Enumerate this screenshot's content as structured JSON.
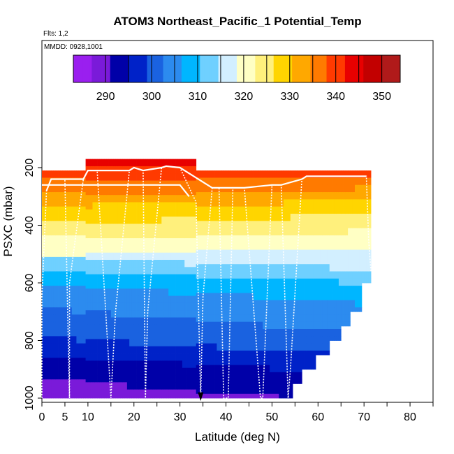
{
  "chart_data": {
    "type": "heatmap",
    "title": "ATOM3 Northeast_Pacific_1 Potential_Temp",
    "subtitle_flights": "Flts: 1,2",
    "subtitle_dates": "MMDD: 0928,1001",
    "xlabel": "Latitude (deg N)",
    "ylabel": "PSXC (mbar)",
    "xlim": [
      0,
      85
    ],
    "ylim": [
      1000,
      0
    ],
    "x_ticks": [
      0,
      5,
      10,
      20,
      30,
      40,
      50,
      60,
      70,
      80
    ],
    "y_ticks": [
      200,
      400,
      600,
      800,
      1000
    ],
    "colorbar": {
      "range": [
        283,
        354
      ],
      "ticks": [
        290,
        300,
        310,
        320,
        330,
        340,
        350
      ],
      "colors": [
        "#9a1fef",
        "#7a1ad9",
        "#0000a8",
        "#0022c8",
        "#1a62e0",
        "#2c8bef",
        "#00b6ff",
        "#6fd0ff",
        "#d2efff",
        "#ffffc4",
        "#fff07c",
        "#ffd500",
        "#ffa800",
        "#ff7a00",
        "#ff3a00",
        "#e80000",
        "#c20000",
        "#b01a1a"
      ]
    },
    "pressure_levels": [
      180,
      200,
      260,
      300,
      340,
      400,
      450,
      500,
      550,
      600,
      650,
      700,
      750,
      800,
      850,
      900,
      950,
      1000
    ],
    "theta_profile": [
      345,
      342,
      336,
      333,
      329,
      325,
      321,
      318,
      313,
      309,
      306,
      304,
      302,
      300,
      297,
      294,
      292,
      290
    ],
    "lat_columns_extent": [
      {
        "x0": 0,
        "x1": 9.5,
        "p_top": 210
      },
      {
        "x0": 9.5,
        "x1": 33.5,
        "p_top": 170
      },
      {
        "x0": 33.5,
        "x1": 70.5,
        "p_top": 210
      },
      {
        "x0": 70.5,
        "x1": 71.5,
        "p_top": 210
      }
    ],
    "lat_columns_bottom": [
      {
        "x0": 0,
        "x1": 33.5,
        "p_bot": 1000
      },
      {
        "x0": 33.5,
        "x1": 54.5,
        "p_bot": 1000
      },
      {
        "x0": 54.5,
        "x1": 56.5,
        "p_bot": 950
      },
      {
        "x0": 56.5,
        "x1": 59.5,
        "p_bot": 900
      },
      {
        "x0": 59.5,
        "x1": 62.5,
        "p_bot": 850
      },
      {
        "x0": 62.5,
        "x1": 65,
        "p_bot": 800
      },
      {
        "x0": 65,
        "x1": 67,
        "p_bot": 750
      },
      {
        "x0": 67,
        "x1": 69.5,
        "p_bot": 700
      },
      {
        "x0": 69.5,
        "x1": 71.5,
        "p_bot": 600
      }
    ],
    "flight_track": [
      [
        0,
        1000
      ],
      [
        0,
        650
      ],
      [
        1,
        280
      ],
      [
        2,
        240
      ],
      [
        5,
        240
      ],
      [
        6,
        1000
      ],
      [
        6,
        600
      ],
      [
        9,
        240
      ],
      [
        10,
        210
      ],
      [
        12,
        210
      ],
      [
        15,
        1000
      ],
      [
        16,
        700
      ],
      [
        19,
        210
      ],
      [
        20,
        200
      ],
      [
        22,
        210
      ],
      [
        22.5,
        1000
      ],
      [
        23,
        700
      ],
      [
        26,
        200
      ],
      [
        27,
        195
      ],
      [
        30,
        200
      ],
      [
        33.5,
        320
      ],
      [
        34.5,
        1000
      ],
      [
        35,
        650
      ],
      [
        37,
        270
      ],
      [
        38.5,
        270
      ],
      [
        39.5,
        1000
      ],
      [
        40.5,
        1000
      ],
      [
        41.5,
        270
      ],
      [
        44,
        270
      ],
      [
        47.5,
        1000
      ],
      [
        48,
        1000
      ],
      [
        50,
        260
      ],
      [
        52,
        260
      ],
      [
        53.5,
        1000
      ],
      [
        54,
        900
      ],
      [
        56.5,
        240
      ],
      [
        57.5,
        230
      ],
      [
        70,
        230
      ],
      [
        70.5,
        230
      ],
      [
        71,
        450
      ],
      [
        71.5,
        560
      ]
    ],
    "flight_track_step": [
      [
        0,
        260
      ],
      [
        9.5,
        260
      ],
      [
        10,
        260
      ],
      [
        30,
        260
      ],
      [
        32,
        300
      ]
    ],
    "grid": false,
    "legend": "colorbar-top"
  }
}
